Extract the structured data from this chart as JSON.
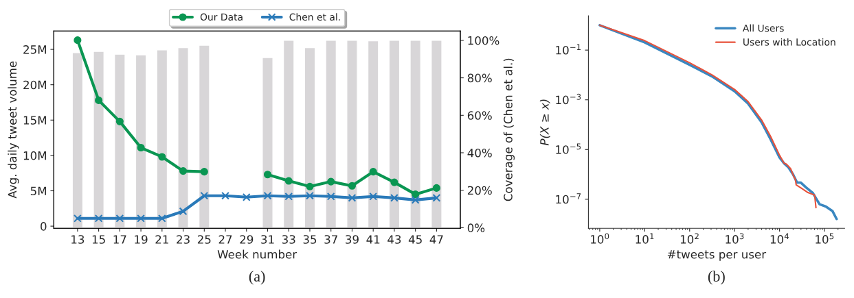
{
  "chart_data": [
    {
      "type": "line",
      "xlabel": "Week number",
      "ylabel": "Avg. daily tweet volume",
      "y2label": "Coverage of (Chen et al.)",
      "categories": [
        "13",
        "15",
        "17",
        "19",
        "21",
        "23",
        "25",
        "27",
        "29",
        "31",
        "33",
        "35",
        "37",
        "39",
        "41",
        "43",
        "45",
        "47"
      ],
      "series": [
        {
          "type": "bar",
          "axis": "y2",
          "color": "#d8d6d8",
          "values": [
            93.5,
            94.1,
            92.6,
            92.3,
            94.9,
            96.1,
            97.4,
            null,
            null,
            90.8,
            100,
            96.1,
            100,
            100,
            99.8,
            100,
            100,
            100
          ]
        },
        {
          "name": "Our Data",
          "color": "#0a9652",
          "marker": "circle",
          "values": [
            26.3,
            17.8,
            14.8,
            11.1,
            9.8,
            7.8,
            7.7,
            null,
            null,
            7.3,
            6.4,
            5.6,
            6.3,
            5.7,
            7.7,
            6.2,
            4.5,
            5.4
          ]
        },
        {
          "name": "Chen et al.",
          "color": "#2a7ab9",
          "marker": "cross",
          "values": [
            1.1,
            1.1,
            1.1,
            1.1,
            1.1,
            2.1,
            4.3,
            4.3,
            4.1,
            4.3,
            4.2,
            4.3,
            4.2,
            4.0,
            4.2,
            4.0,
            3.7,
            4.0
          ]
        }
      ],
      "ylim": [
        -0.3,
        27.6
      ],
      "yticks": [
        {
          "value": 0,
          "label": "0"
        },
        {
          "value": 5,
          "label": "5M"
        },
        {
          "value": 10,
          "label": "10M"
        },
        {
          "value": 15,
          "label": "15M"
        },
        {
          "value": 20,
          "label": "20M"
        },
        {
          "value": 25,
          "label": "25M"
        }
      ],
      "y2lim": [
        -0.3,
        105
      ],
      "y2ticks": [
        {
          "value": 0,
          "label": "0%"
        },
        {
          "value": 20,
          "label": "20%"
        },
        {
          "value": 40,
          "label": "40%"
        },
        {
          "value": 60,
          "label": "60%"
        },
        {
          "value": 80,
          "label": "80%"
        },
        {
          "value": 100,
          "label": "100%"
        }
      ],
      "legend": "top",
      "grid": false,
      "annotations": [
        "(a)"
      ]
    },
    {
      "type": "line",
      "xlabel": "#tweets per user",
      "ylabel": "P(X ≥ x)",
      "log": "xy",
      "series": [
        {
          "name": "All Users",
          "color": "#3a87c0",
          "x": [
            1,
            10,
            100,
            316,
            1000,
            1995,
            3981,
            6310,
            10000,
            12590,
            15850,
            19950,
            24550,
            29510,
            38900,
            54950,
            64570,
            77620,
            107150,
            151360,
            186200
          ],
          "values": [
            1.0,
            0.204,
            0.0257,
            0.0087,
            0.0022,
            0.00071,
            0.000126,
            2.6e-05,
            4.8e-06,
            2.8e-06,
            1.9e-06,
            1e-06,
            4.7e-07,
            4.7e-07,
            3e-07,
            1.8e-07,
            1.1e-07,
            6.3e-08,
            5.1e-08,
            3.3e-08,
            1.6e-08
          ]
        },
        {
          "name": "Users with Location",
          "color": "#e8513a",
          "x": [
            1,
            10,
            100,
            316,
            1000,
            1995,
            3981,
            6310,
            10000,
            12590,
            14130,
            17780,
            20890,
            22390,
            23440,
            30900,
            41690,
            60260,
            64570
          ],
          "values": [
            1.0,
            0.24,
            0.031,
            0.01,
            0.0026,
            0.00085,
            0.000155,
            3.4e-05,
            5.9e-06,
            2.8e-06,
            2.6e-06,
            1.66e-06,
            7.9e-07,
            6.5e-07,
            3.8e-07,
            2.75e-07,
            1.9e-07,
            1.48e-07,
            4.6e-08
          ]
        }
      ],
      "xlim": [
        0.56,
        280000
      ],
      "ylim": [
        6.8e-09,
        2.4
      ],
      "xticks": [
        {
          "value": 1,
          "label": "10$^{0}$"
        },
        {
          "value": 10,
          "label": "10$^{1}$"
        },
        {
          "value": 100,
          "label": "10$^{2}$"
        },
        {
          "value": 1000,
          "label": "10$^{3}$"
        },
        {
          "value": 10000,
          "label": "10$^{4}$"
        },
        {
          "value": 100000,
          "label": "10$^{5}$"
        }
      ],
      "yticks": [
        {
          "value": 0.1,
          "label": "10$^{−1}$"
        },
        {
          "value": 0.001,
          "label": "10$^{−3}$"
        },
        {
          "value": 1e-05,
          "label": "10$^{−5}$"
        },
        {
          "value": 1e-07,
          "label": "10$^{−7}$"
        }
      ],
      "legend": "top right",
      "grid": false,
      "annotations": [
        "(b)"
      ]
    }
  ]
}
